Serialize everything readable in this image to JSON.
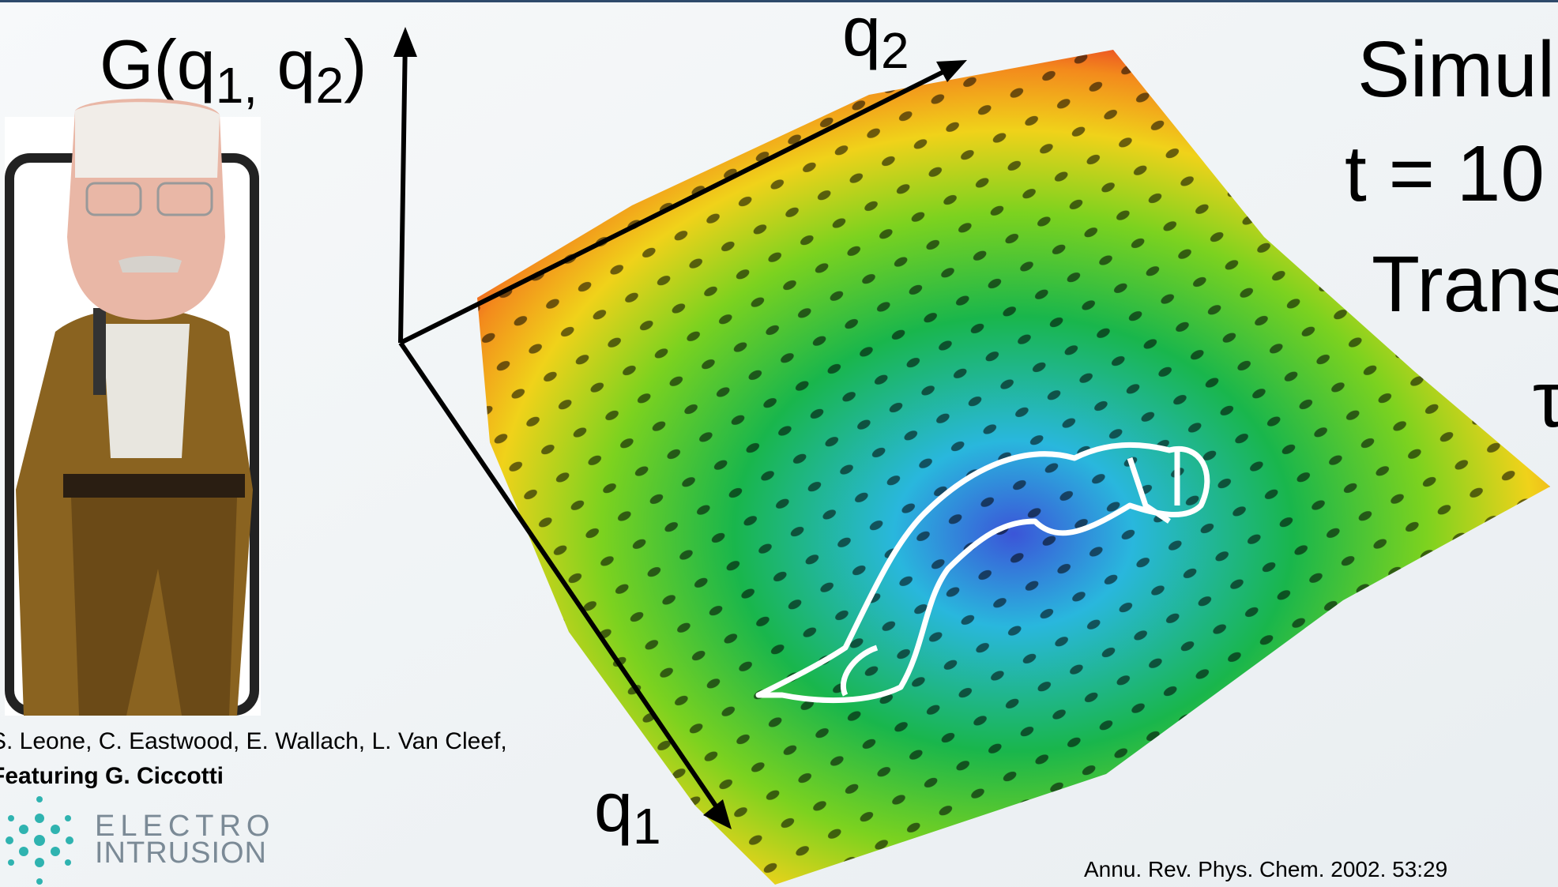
{
  "axes": {
    "g_label": {
      "prefix": "G(q",
      "sub1": "1,",
      "mid": " q",
      "sub2": "2",
      "suffix": ")"
    },
    "q2": {
      "base": "q",
      "sub": "2"
    },
    "q1": {
      "base": "q",
      "sub": "1"
    }
  },
  "title_lines": [
    "Simul",
    "t = 10",
    "Trans",
    "τ"
  ],
  "credits": {
    "line1": "S. Leone, C. Eastwood, E. Wallach, L. Van Cleef,",
    "line2": "Featuring G. Ciccotti"
  },
  "logo": {
    "line1": "ELECTRO",
    "line2": "INTRUSION"
  },
  "citation": "Annu. Rev. Phys. Chem. 2002. 53:29"
}
